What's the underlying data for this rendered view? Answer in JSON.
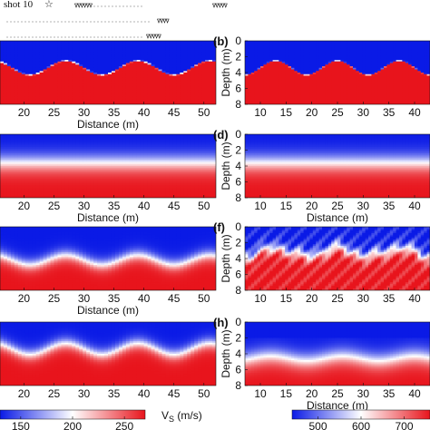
{
  "header": {
    "shot_label": "shot 10",
    "star_icon": "star-icon",
    "geophone_icon": "geophone-triangle-icon"
  },
  "colors": {
    "blue": "#0a1ae6",
    "red": "#e8141c",
    "white": "#ffffff"
  },
  "chart_data": [
    {
      "id": "a-row1-left",
      "type": "heatmap",
      "panel_label": "",
      "x_ticks": [
        "20",
        "25",
        "30",
        "35",
        "40",
        "45",
        "50"
      ],
      "xlim": [
        16,
        52
      ],
      "xlabel": "Distance (m)",
      "ylabel": "",
      "y_ticks": [],
      "interface": {
        "style": "sharp",
        "mean_depth": 3.4,
        "amplitude": 0.9,
        "period": 12,
        "phase_x": 21
      }
    },
    {
      "id": "b-row1-right",
      "type": "heatmap",
      "panel_label": "(b)",
      "x_ticks": [
        "10",
        "15",
        "20",
        "25",
        "30",
        "35",
        "40"
      ],
      "xlim": [
        7,
        43
      ],
      "xlabel": "",
      "ylabel": "Depth (m)",
      "y_ticks": [
        "0",
        "2",
        "4",
        "6",
        "8"
      ],
      "ylim": [
        0,
        8
      ],
      "interface": {
        "style": "sharp",
        "mean_depth": 3.4,
        "amplitude": 0.9,
        "period": 12,
        "phase_x": 19
      }
    },
    {
      "id": "c-row2-left",
      "type": "heatmap",
      "panel_label": "",
      "x_ticks": [
        "20",
        "25",
        "30",
        "35",
        "40",
        "45",
        "50"
      ],
      "xlim": [
        16,
        52
      ],
      "xlabel": "Distance (m)",
      "ylabel": "",
      "y_ticks": [],
      "interface": {
        "style": "smooth-flat",
        "mean_depth": 3.6,
        "amplitude": 0,
        "period": 12,
        "phase_x": 0
      }
    },
    {
      "id": "d-row2-right",
      "type": "heatmap",
      "panel_label": "(d)",
      "x_ticks": [
        "10",
        "15",
        "20",
        "25",
        "30",
        "35",
        "40"
      ],
      "xlim": [
        7,
        43
      ],
      "xlabel": "Distance (m)",
      "ylabel": "Depth (m)",
      "y_ticks": [
        "0",
        "2",
        "4",
        "6",
        "8"
      ],
      "ylim": [
        0,
        8
      ],
      "interface": {
        "style": "smooth-flat",
        "mean_depth": 3.6,
        "amplitude": 0,
        "period": 12,
        "phase_x": 0
      }
    },
    {
      "id": "e-row3-left",
      "type": "heatmap",
      "panel_label": "",
      "x_ticks": [
        "20",
        "25",
        "30",
        "35",
        "40",
        "45",
        "50"
      ],
      "xlim": [
        16,
        52
      ],
      "xlabel": "Distance (m)",
      "ylabel": "",
      "y_ticks": [],
      "interface": {
        "style": "smooth",
        "mean_depth": 4.2,
        "amplitude": 0.6,
        "period": 12,
        "phase_x": 21
      }
    },
    {
      "id": "f-row3-right",
      "type": "heatmap",
      "panel_label": "(f)",
      "x_ticks": [
        "10",
        "15",
        "20",
        "25",
        "30",
        "35",
        "40"
      ],
      "xlim": [
        7,
        43
      ],
      "xlabel": "",
      "ylabel": "Depth (m)",
      "y_ticks": [
        "0",
        "2",
        "4",
        "6",
        "8"
      ],
      "ylim": [
        0,
        8
      ],
      "interface": {
        "style": "noisy",
        "mean_depth": 3.2,
        "amplitude": 0.5,
        "period": 12,
        "phase_x": 19
      }
    },
    {
      "id": "g-row4-left",
      "type": "heatmap",
      "panel_label": "",
      "x_ticks": [
        "20",
        "25",
        "30",
        "35",
        "40",
        "45",
        "50"
      ],
      "xlim": [
        16,
        52
      ],
      "xlabel": "",
      "ylabel": "",
      "y_ticks": [],
      "interface": {
        "style": "smooth",
        "mean_depth": 3.4,
        "amplitude": 0.7,
        "period": 12,
        "phase_x": 21
      }
    },
    {
      "id": "h-row4-right",
      "type": "heatmap",
      "panel_label": "(h)",
      "x_ticks": [
        "10",
        "15",
        "20",
        "25",
        "30",
        "35",
        "40"
      ],
      "xlim": [
        7,
        43
      ],
      "xlabel": "Distance (m)",
      "ylabel": "Depth (m)",
      "y_ticks": [
        "0",
        "2",
        "4",
        "6",
        "8"
      ],
      "ylim": [
        0,
        8
      ],
      "interface": {
        "style": "smooth-deep",
        "mean_depth": 4.6,
        "amplitude": 0.3,
        "period": 14,
        "phase_x": 19
      }
    }
  ],
  "colorbars": [
    {
      "id": "left",
      "ticks": [
        "150",
        "200",
        "250"
      ],
      "range": [
        130,
        270
      ],
      "label": "V",
      "label_sub": "S",
      "label_unit": " (m/s)"
    },
    {
      "id": "right",
      "ticks": [
        "500",
        "600",
        "700"
      ],
      "range": [
        440,
        760
      ],
      "label": "",
      "label_sub": "",
      "label_unit": ""
    }
  ]
}
